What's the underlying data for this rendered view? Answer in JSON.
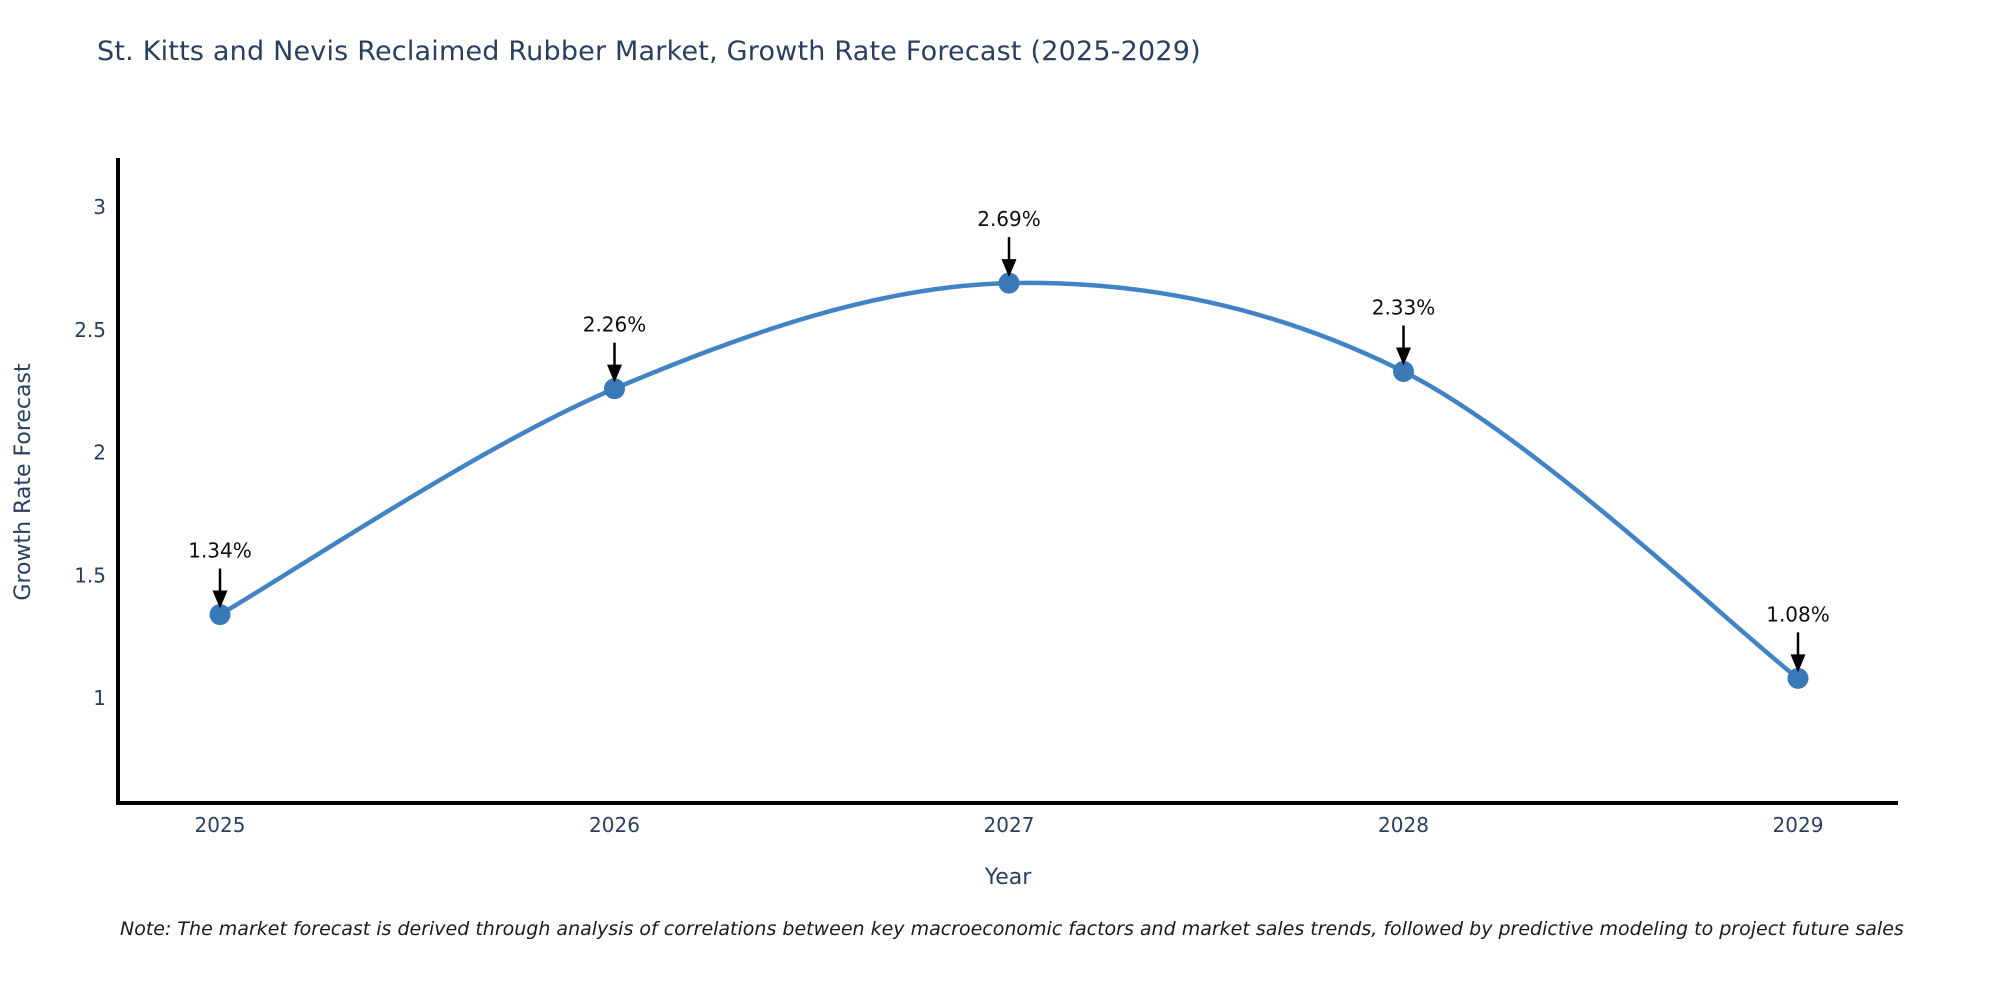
{
  "title": {
    "text": "St. Kitts and Nevis Reclaimed Rubber Market, Growth Rate Forecast (2025-2029)"
  },
  "chart_data": {
    "type": "line",
    "title": "St. Kitts and Nevis Reclaimed Rubber Market, Growth Rate Forecast (2025-2029)",
    "x": [
      2025,
      2026,
      2027,
      2028,
      2029
    ],
    "categories": [
      "2025",
      "2026",
      "2027",
      "2028",
      "2029"
    ],
    "series": [
      {
        "name": "Growth Rate Forecast",
        "values": [
          1.34,
          2.26,
          2.69,
          2.33,
          1.08
        ],
        "point_labels": [
          "1.34%",
          "2.26%",
          "2.69%",
          "2.33%",
          "1.08%"
        ]
      }
    ],
    "xlabel": "Year",
    "ylabel": "Growth Rate Forecast",
    "ytick_labels": [
      "3",
      "2.5",
      "2",
      "1.5",
      "1"
    ],
    "yticks": [
      3,
      2.5,
      2,
      1.5,
      1
    ],
    "ylim": [
      0.57,
      3.19
    ],
    "grid": false,
    "legend_position": "none",
    "line_shape": "spline",
    "marker_style": "circle",
    "annotations_have_arrows": true
  },
  "colors": {
    "background": "#ffffff",
    "line": "#4183c4",
    "marker": "#3a79b7",
    "axis_line": "#000000",
    "axis_text": "#2a3f5f",
    "annotation_text": "#0d0d0d",
    "annotation_arrow": "#000000"
  },
  "note": {
    "text": "Note: The market forecast is derived through analysis of correlations between key macroeconomic factors and market sales trends, followed by predictive modeling to project future sales"
  }
}
